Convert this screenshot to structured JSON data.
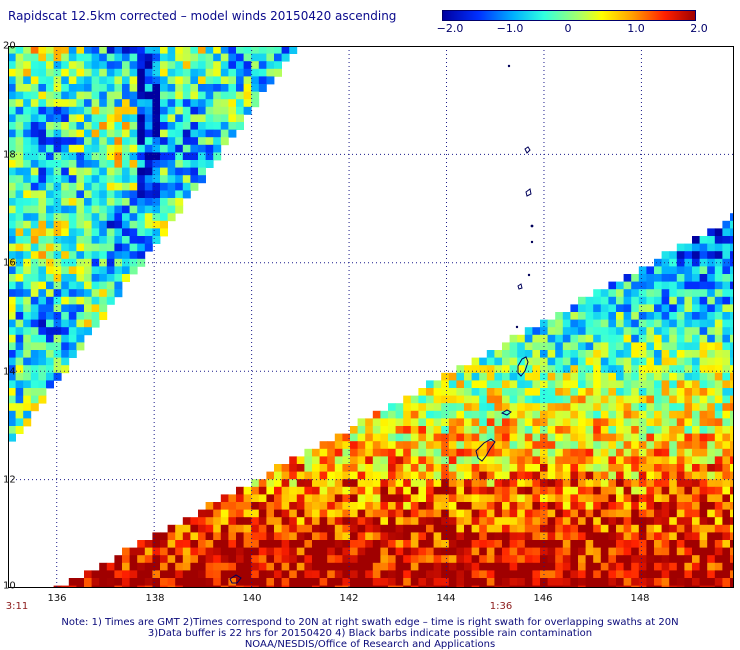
{
  "title": "Rapidscat 12.5km corrected – model winds 20150420 ascending",
  "colorbar": {
    "ticks": [
      {
        "label": "−2.0",
        "value": -2.0
      },
      {
        "label": "−1.0",
        "value": -1.0
      },
      {
        "label": "0",
        "value": 0
      },
      {
        "label": "1.0",
        "value": 1.0
      },
      {
        "label": "2.0",
        "value": 2.0
      }
    ],
    "range": [
      -2.0,
      2.0
    ]
  },
  "map": {
    "lat_range": [
      10,
      20
    ],
    "lon_range": [
      135,
      149.9
    ],
    "lat_labels": [
      "20",
      "18",
      "16",
      "14",
      "12",
      "10"
    ],
    "lon_labels": [
      "136",
      "138",
      "140",
      "142",
      "144",
      "146",
      "148"
    ],
    "time_labels": [
      {
        "label": "3:11",
        "lon": 135.05
      },
      {
        "label": "1:36",
        "lon": 145.2
      }
    ],
    "colors": {
      "frame": "#000000",
      "grid": "#1a1a8a",
      "coast": "#00005a",
      "time": "#8b1a1a"
    }
  },
  "notes": {
    "line1": "Note: 1) Times are GMT 2)Times correspond to 20N at right swath edge – time is right swath for overlapping swaths at 20N",
    "line2": "3)Data buffer is 22 hrs for 20150420 4) Black barbs indicate possible rain contamination",
    "line3": "NOAA/NESDIS/Office of Research and Applications"
  }
}
